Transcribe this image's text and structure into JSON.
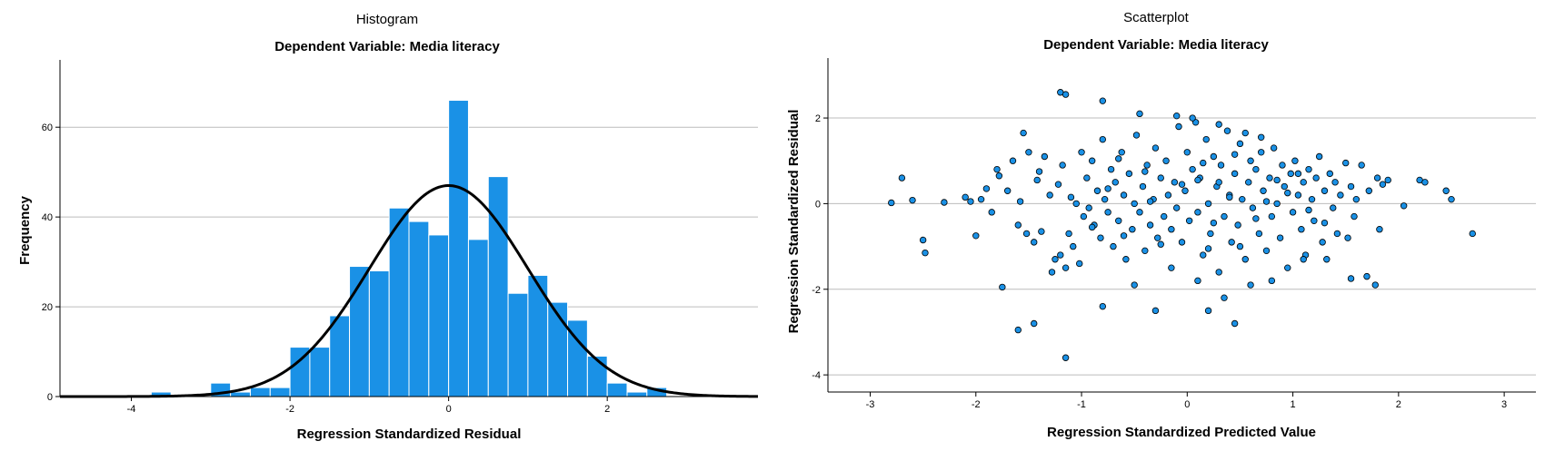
{
  "histogram": {
    "title": "Histogram",
    "subtitle": "Dependent Variable: Media literacy",
    "xlabel": "Regression Standardized Residual",
    "ylabel": "Frequency",
    "x_ticks": [
      "-4",
      "-2",
      "0",
      "2"
    ],
    "y_ticks": [
      "0",
      "20",
      "40",
      "60"
    ],
    "bar_color": "#1a91e6",
    "curve_color": "#000000"
  },
  "scatter": {
    "title": "Scatterplot",
    "subtitle": "Dependent Variable: Media literacy",
    "xlabel": "Regression Standardized Predicted Value",
    "ylabel": "Regression Standardized Residual",
    "x_ticks": [
      "-3",
      "-2",
      "-1",
      "0",
      "1",
      "2",
      "3"
    ],
    "y_ticks": [
      "-4",
      "-2",
      "0",
      "2"
    ],
    "point_color": "#1a91e6"
  },
  "chart_data": [
    {
      "type": "bar",
      "title": "Histogram",
      "subtitle": "Dependent Variable: Media literacy",
      "xlabel": "Regression Standardized Residual",
      "ylabel": "Frequency",
      "xlim": [
        -4.9,
        3.9
      ],
      "ylim": [
        0,
        75
      ],
      "bin_width": 0.25,
      "bins_start": [
        -3.75,
        -3.5,
        -3.25,
        -3.0,
        -2.75,
        -2.5,
        -2.25,
        -2.0,
        -1.75,
        -1.5,
        -1.25,
        -1.0,
        -0.75,
        -0.5,
        -0.25,
        0.0,
        0.25,
        0.5,
        0.75,
        1.0,
        1.25,
        1.5,
        1.75,
        2.0,
        2.25,
        2.5
      ],
      "values": [
        1,
        0,
        0,
        3,
        1,
        2,
        2,
        11,
        11,
        18,
        29,
        28,
        42,
        39,
        36,
        66,
        35,
        49,
        23,
        27,
        21,
        17,
        9,
        3,
        1,
        2
      ],
      "normal_curve": {
        "mean": 0,
        "sd": 1,
        "peak": 47
      }
    },
    {
      "type": "scatter",
      "title": "Scatterplot",
      "subtitle": "Dependent Variable: Media literacy",
      "xlabel": "Regression Standardized Predicted Value",
      "ylabel": "Regression Standardized Residual",
      "xlim": [
        -3.4,
        3.3
      ],
      "ylim": [
        -4.4,
        3.4
      ],
      "points": [
        [
          -2.8,
          0.02
        ],
        [
          -2.7,
          0.6
        ],
        [
          -2.6,
          0.08
        ],
        [
          -2.5,
          -0.85
        ],
        [
          -2.48,
          -1.15
        ],
        [
          -2.3,
          0.03
        ],
        [
          -2.1,
          0.15
        ],
        [
          -2.05,
          0.05
        ],
        [
          -2.0,
          -0.75
        ],
        [
          -1.95,
          0.1
        ],
        [
          -1.9,
          0.35
        ],
        [
          -1.85,
          -0.2
        ],
        [
          -1.8,
          0.8
        ],
        [
          -1.78,
          0.65
        ],
        [
          -1.75,
          -1.95
        ],
        [
          -1.7,
          0.3
        ],
        [
          -1.65,
          1.0
        ],
        [
          -1.6,
          -0.5
        ],
        [
          -1.58,
          0.05
        ],
        [
          -1.55,
          1.65
        ],
        [
          -1.52,
          -0.7
        ],
        [
          -1.5,
          1.2
        ],
        [
          -1.45,
          -0.9
        ],
        [
          -1.42,
          0.55
        ],
        [
          -1.4,
          0.75
        ],
        [
          -1.38,
          -0.65
        ],
        [
          -1.35,
          1.1
        ],
        [
          -1.3,
          0.2
        ],
        [
          -1.28,
          -1.6
        ],
        [
          -1.25,
          -1.3
        ],
        [
          -1.22,
          0.45
        ],
        [
          -1.2,
          -1.2
        ],
        [
          -1.18,
          0.9
        ],
        [
          -1.15,
          -1.5
        ],
        [
          -1.12,
          -0.7
        ],
        [
          -1.1,
          0.15
        ],
        [
          -1.08,
          -1.0
        ],
        [
          -1.05,
          0.0
        ],
        [
          -1.02,
          -1.4
        ],
        [
          -1.0,
          1.2
        ],
        [
          -0.98,
          -0.3
        ],
        [
          -0.95,
          0.6
        ],
        [
          -0.93,
          -0.1
        ],
        [
          -0.9,
          1.0
        ],
        [
          -0.88,
          -0.5
        ],
        [
          -0.85,
          0.3
        ],
        [
          -0.82,
          -0.8
        ],
        [
          -0.8,
          1.5
        ],
        [
          -0.78,
          0.1
        ],
        [
          -0.75,
          -0.2
        ],
        [
          -0.72,
          0.8
        ],
        [
          -0.7,
          -1.0
        ],
        [
          -0.68,
          0.5
        ],
        [
          -0.65,
          -0.4
        ],
        [
          -0.62,
          1.2
        ],
        [
          -0.6,
          0.2
        ],
        [
          -0.58,
          -1.3
        ],
        [
          -0.55,
          0.7
        ],
        [
          -0.52,
          -0.6
        ],
        [
          -0.5,
          0.0
        ],
        [
          -0.48,
          1.6
        ],
        [
          -0.45,
          -0.2
        ],
        [
          -0.42,
          0.4
        ],
        [
          -0.4,
          -1.1
        ],
        [
          -0.38,
          0.9
        ],
        [
          -0.35,
          -0.5
        ],
        [
          -0.32,
          0.1
        ],
        [
          -0.3,
          1.3
        ],
        [
          -0.28,
          -0.8
        ],
        [
          -0.25,
          0.6
        ],
        [
          -0.22,
          -0.3
        ],
        [
          -0.2,
          1.0
        ],
        [
          -0.18,
          0.2
        ],
        [
          -0.15,
          -1.5
        ],
        [
          -0.12,
          0.5
        ],
        [
          -0.1,
          -0.1
        ],
        [
          -0.08,
          1.8
        ],
        [
          -0.05,
          -0.9
        ],
        [
          -0.02,
          0.3
        ],
        [
          0.0,
          1.2
        ],
        [
          0.02,
          -0.4
        ],
        [
          0.05,
          0.8
        ],
        [
          0.08,
          1.9
        ],
        [
          0.1,
          -0.2
        ],
        [
          0.12,
          0.6
        ],
        [
          0.15,
          -1.2
        ],
        [
          0.18,
          1.5
        ],
        [
          0.2,
          0.0
        ],
        [
          0.22,
          -0.7
        ],
        [
          0.25,
          1.1
        ],
        [
          0.28,
          0.4
        ],
        [
          0.3,
          -1.6
        ],
        [
          0.32,
          0.9
        ],
        [
          0.35,
          -0.3
        ],
        [
          0.38,
          1.7
        ],
        [
          0.4,
          0.2
        ],
        [
          0.42,
          -0.9
        ],
        [
          0.45,
          0.7
        ],
        [
          0.48,
          -0.5
        ],
        [
          0.5,
          1.4
        ],
        [
          0.52,
          0.1
        ],
        [
          0.55,
          -1.3
        ],
        [
          0.58,
          0.5
        ],
        [
          0.6,
          1.0
        ],
        [
          0.62,
          -0.1
        ],
        [
          0.65,
          0.8
        ],
        [
          0.68,
          -0.7
        ],
        [
          0.7,
          1.2
        ],
        [
          0.72,
          0.3
        ],
        [
          0.75,
          -1.1
        ],
        [
          0.78,
          0.6
        ],
        [
          0.8,
          -0.3
        ],
        [
          0.82,
          1.3
        ],
        [
          0.85,
          0.0
        ],
        [
          0.88,
          -0.8
        ],
        [
          0.9,
          0.9
        ],
        [
          0.92,
          0.4
        ],
        [
          0.95,
          -1.5
        ],
        [
          0.98,
          0.7
        ],
        [
          1.0,
          -0.2
        ],
        [
          1.02,
          1.0
        ],
        [
          1.05,
          0.2
        ],
        [
          1.08,
          -0.6
        ],
        [
          1.1,
          0.5
        ],
        [
          1.12,
          -1.2
        ],
        [
          1.15,
          0.8
        ],
        [
          1.18,
          0.1
        ],
        [
          1.2,
          -0.4
        ],
        [
          1.22,
          0.6
        ],
        [
          1.25,
          1.1
        ],
        [
          1.28,
          -0.9
        ],
        [
          1.3,
          0.3
        ],
        [
          1.32,
          -1.3
        ],
        [
          1.35,
          0.7
        ],
        [
          1.38,
          -0.1
        ],
        [
          1.4,
          0.5
        ],
        [
          1.42,
          -0.7
        ],
        [
          1.45,
          0.2
        ],
        [
          1.5,
          0.95
        ],
        [
          1.52,
          -0.8
        ],
        [
          1.55,
          0.4
        ],
        [
          1.58,
          -0.3
        ],
        [
          1.6,
          0.1
        ],
        [
          1.65,
          0.9
        ],
        [
          1.7,
          -1.7
        ],
        [
          1.72,
          0.3
        ],
        [
          1.78,
          -1.9
        ],
        [
          1.8,
          0.6
        ],
        [
          1.82,
          -0.6
        ],
        [
          1.85,
          0.45
        ],
        [
          1.9,
          0.55
        ],
        [
          2.05,
          -0.05
        ],
        [
          2.2,
          0.55
        ],
        [
          2.25,
          0.5
        ],
        [
          2.45,
          0.3
        ],
        [
          2.5,
          0.1
        ],
        [
          2.7,
          -0.7
        ],
        [
          -1.2,
          2.6
        ],
        [
          -1.15,
          2.55
        ],
        [
          -0.8,
          2.4
        ],
        [
          -0.45,
          2.1
        ],
        [
          0.05,
          2.0
        ],
        [
          -0.1,
          2.05
        ],
        [
          0.3,
          1.85
        ],
        [
          0.55,
          1.65
        ],
        [
          0.7,
          1.55
        ],
        [
          -1.6,
          -2.95
        ],
        [
          -1.45,
          -2.8
        ],
        [
          -0.8,
          -2.4
        ],
        [
          -1.15,
          -3.6
        ],
        [
          -0.3,
          -2.5
        ],
        [
          0.2,
          -2.5
        ],
        [
          0.45,
          -2.8
        ],
        [
          0.35,
          -2.2
        ],
        [
          0.1,
          -1.8
        ],
        [
          -0.5,
          -1.9
        ],
        [
          0.6,
          -1.9
        ],
        [
          0.8,
          -1.8
        ],
        [
          1.1,
          -1.3
        ],
        [
          1.55,
          -1.75
        ],
        [
          0.1,
          0.55
        ],
        [
          0.25,
          -0.45
        ],
        [
          -0.35,
          0.05
        ],
        [
          0.4,
          0.15
        ],
        [
          0.15,
          0.95
        ],
        [
          -0.6,
          -0.75
        ],
        [
          0.65,
          -0.35
        ],
        [
          0.95,
          0.25
        ],
        [
          -0.25,
          -0.95
        ],
        [
          1.15,
          -0.15
        ],
        [
          -0.75,
          0.35
        ],
        [
          0.5,
          -1.0
        ],
        [
          0.85,
          0.55
        ],
        [
          -0.05,
          0.45
        ],
        [
          0.3,
          0.5
        ],
        [
          -0.4,
          0.75
        ],
        [
          0.75,
          0.05
        ],
        [
          1.3,
          -0.45
        ],
        [
          -0.15,
          -0.6
        ],
        [
          0.45,
          1.15
        ],
        [
          -0.65,
          1.05
        ],
        [
          0.2,
          -1.05
        ],
        [
          1.05,
          0.7
        ],
        [
          -0.9,
          -0.55
        ]
      ]
    }
  ]
}
